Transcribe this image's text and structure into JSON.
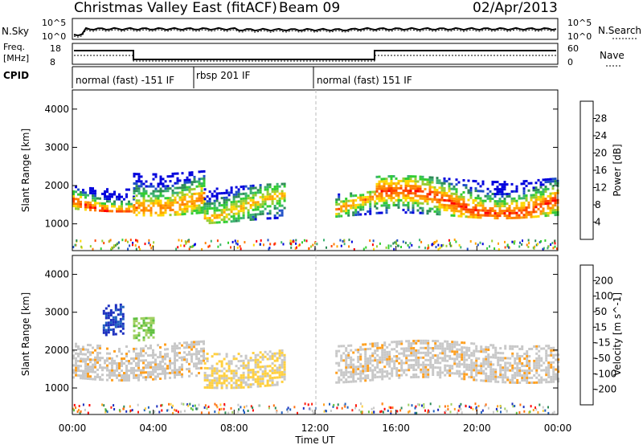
{
  "header": {
    "station": "Christmas Valley East (fitACF)",
    "beam": "Beam 09",
    "date": "02/Apr/2013"
  },
  "noise_panel": {
    "left_label": "N.Sky",
    "right_label": "N.Search",
    "ticks_left": [
      "10^5",
      "10^0"
    ],
    "ticks_right": [
      "10^5",
      "10^0"
    ]
  },
  "freq_panel": {
    "left_label_1": "Freq.",
    "left_label_2": "[MHz]",
    "right_label": "Nave",
    "ticks_left": [
      "18",
      "8"
    ],
    "ticks_right": [
      "60",
      "0"
    ]
  },
  "cpid": {
    "label": "CPID",
    "segments": [
      {
        "text": "normal (fast) -151 IF",
        "start_hour": 0
      },
      {
        "text": "rbsp 201 IF",
        "start_hour": 6
      },
      {
        "text": "normal (fast) 151 IF",
        "start_hour": 12
      }
    ]
  },
  "power_panel": {
    "ylabel": "Slant Range [km]",
    "yticks": [
      "4000",
      "3000",
      "2000",
      "1000"
    ],
    "colorbar_label": "Power [dB]",
    "colorbar_ticks": [
      "28",
      "24",
      "20",
      "16",
      "12",
      "8",
      "4"
    ],
    "colors": [
      "#0000dd",
      "#2050c8",
      "#2e8b57",
      "#3cb371",
      "#32cd32",
      "#9acd32",
      "#ffd700",
      "#ffa500",
      "#ff7f00",
      "#ff4500",
      "#ff0000"
    ]
  },
  "velocity_panel": {
    "ylabel": "Slant Range [km]",
    "yticks": [
      "4000",
      "3000",
      "2000",
      "1000"
    ],
    "colorbar_label": "Velocity [m s^-1]",
    "colorbar_ticks": [
      "200",
      "100",
      "50",
      "15",
      "-15",
      "-50",
      "-100",
      "-200"
    ],
    "colors": [
      "#1c2fbf",
      "#2060c0",
      "#2e8b57",
      "#60c040",
      "#a0d060",
      "#c8c8c8",
      "#c8c8c8",
      "#ffd040",
      "#ffa020",
      "#ff7010",
      "#ff2010",
      "#ff0000"
    ]
  },
  "x_axis": {
    "label": "Time UT",
    "ticks": [
      "00:00",
      "04:00",
      "08:00",
      "12:00",
      "16:00",
      "20:00",
      "00:00"
    ]
  },
  "chart_data": {
    "type": "heatmap",
    "x_range_hours": [
      0,
      24
    ],
    "y_range_km": [
      300,
      4500
    ],
    "power_bands": [
      {
        "start_hour": 0.0,
        "end_hour": 3.0,
        "range_km": [
          1400,
          2000
        ],
        "power_db": 28
      },
      {
        "start_hour": 3.0,
        "end_hour": 6.5,
        "range_km": [
          1300,
          2400
        ],
        "power_db": 24
      },
      {
        "start_hour": 6.5,
        "end_hour": 10.5,
        "range_km": [
          1100,
          2000
        ],
        "power_db": 20
      },
      {
        "start_hour": 13.0,
        "end_hour": 15.0,
        "range_km": [
          1200,
          1800
        ],
        "power_db": 24
      },
      {
        "start_hour": 15.0,
        "end_hour": 24.0,
        "range_km": [
          1200,
          2200
        ],
        "power_db": 28
      }
    ],
    "velocity_bands": [
      {
        "start_hour": 0.0,
        "end_hour": 6.5,
        "range_km": [
          1300,
          2200
        ],
        "velocity": 0
      },
      {
        "start_hour": 6.5,
        "end_hour": 10.5,
        "range_km": [
          1100,
          2000
        ],
        "velocity": -30
      },
      {
        "start_hour": 13.0,
        "end_hour": 24.0,
        "range_km": [
          1200,
          2200
        ],
        "velocity": 0
      },
      {
        "start_hour": 1.5,
        "end_hour": 2.5,
        "range_km": [
          2400,
          3200
        ],
        "velocity": 200
      },
      {
        "start_hour": 3.0,
        "end_hour": 4.0,
        "range_km": [
          2200,
          2800
        ],
        "velocity": 50
      }
    ]
  }
}
